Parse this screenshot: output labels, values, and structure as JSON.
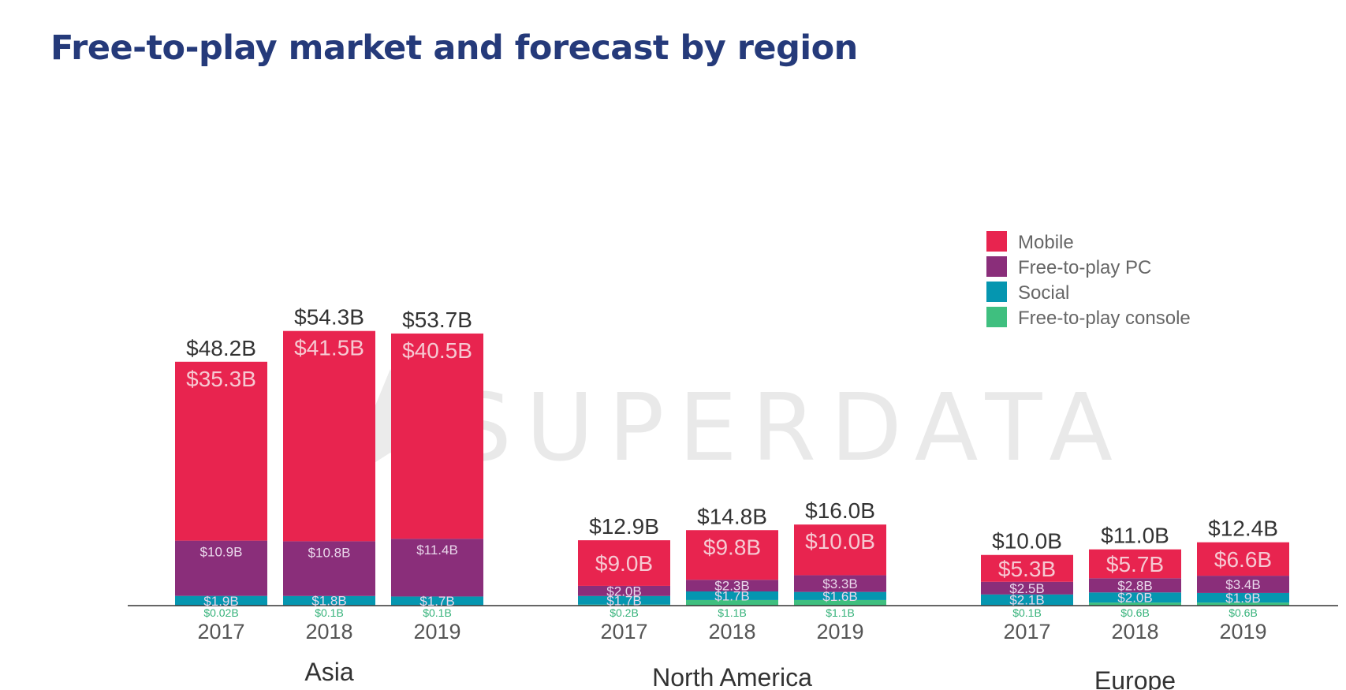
{
  "title": "Free-to-play market and forecast by region",
  "watermark": "SUPERDATA",
  "colors": {
    "Mobile": "#e8244f",
    "Free-to-play PC": "#8a2e7a",
    "Social": "#0596b0",
    "Free-to-play console": "#3fbf7f"
  },
  "chart_data": {
    "type": "bar",
    "stacked": true,
    "ylim": [
      0,
      60
    ],
    "legend": [
      "Mobile",
      "Free-to-play PC",
      "Social",
      "Free-to-play console"
    ],
    "legend_position": "right",
    "groups": [
      {
        "region": "Asia",
        "bars": [
          {
            "year": "2017",
            "total": "$48.2B",
            "Mobile": 35.3,
            "Free-to-play PC": 10.9,
            "Social": 1.9,
            "Free-to-play console": 0.02,
            "labels": {
              "Mobile": "$35.3B",
              "Free-to-play PC": "$10.9B",
              "Social": "$1.9B",
              "Free-to-play console": "$0.02B"
            }
          },
          {
            "year": "2018",
            "total": "$54.3B",
            "Mobile": 41.5,
            "Free-to-play PC": 10.8,
            "Social": 1.8,
            "Free-to-play console": 0.1,
            "labels": {
              "Mobile": "$41.5B",
              "Free-to-play PC": "$10.8B",
              "Social": "$1.8B",
              "Free-to-play console": "$0.1B"
            }
          },
          {
            "year": "2019",
            "total": "$53.7B",
            "Mobile": 40.5,
            "Free-to-play PC": 11.4,
            "Social": 1.7,
            "Free-to-play console": 0.1,
            "labels": {
              "Mobile": "$40.5B",
              "Free-to-play PC": "$11.4B",
              "Social": "$1.7B",
              "Free-to-play console": "$0.1B"
            }
          }
        ]
      },
      {
        "region": "North America",
        "bars": [
          {
            "year": "2017",
            "total": "$12.9B",
            "Mobile": 9.0,
            "Free-to-play PC": 2.0,
            "Social": 1.7,
            "Free-to-play console": 0.2,
            "labels": {
              "Mobile": "$9.0B",
              "Free-to-play PC": "$2.0B",
              "Social": "$1.7B",
              "Free-to-play console": "$0.2B"
            }
          },
          {
            "year": "2018",
            "total": "$14.8B",
            "Mobile": 9.8,
            "Free-to-play PC": 2.3,
            "Social": 1.7,
            "Free-to-play console": 1.1,
            "labels": {
              "Mobile": "$9.8B",
              "Free-to-play PC": "$2.3B",
              "Social": "$1.7B",
              "Free-to-play console": "$1.1B"
            }
          },
          {
            "year": "2019",
            "total": "$16.0B",
            "Mobile": 10.0,
            "Free-to-play PC": 3.3,
            "Social": 1.6,
            "Free-to-play console": 1.1,
            "labels": {
              "Mobile": "$10.0B",
              "Free-to-play PC": "$3.3B",
              "Social": "$1.6B",
              "Free-to-play console": "$1.1B"
            }
          }
        ]
      },
      {
        "region": "Europe",
        "bars": [
          {
            "year": "2017",
            "total": "$10.0B",
            "Mobile": 5.3,
            "Free-to-play PC": 2.5,
            "Social": 2.1,
            "Free-to-play console": 0.1,
            "labels": {
              "Mobile": "$5.3B",
              "Free-to-play PC": "$2.5B",
              "Social": "$2.1B",
              "Free-to-play console": "$0.1B"
            }
          },
          {
            "year": "2018",
            "total": "$11.0B",
            "Mobile": 5.7,
            "Free-to-play PC": 2.8,
            "Social": 2.0,
            "Free-to-play console": 0.6,
            "labels": {
              "Mobile": "$5.7B",
              "Free-to-play PC": "$2.8B",
              "Social": "$2.0B",
              "Free-to-play console": "$0.6B"
            }
          },
          {
            "year": "2019",
            "total": "$12.4B",
            "Mobile": 6.6,
            "Free-to-play PC": 3.4,
            "Social": 1.9,
            "Free-to-play console": 0.6,
            "labels": {
              "Mobile": "$6.6B",
              "Free-to-play PC": "$3.4B",
              "Social": "$1.9B",
              "Free-to-play console": "$0.6B"
            }
          }
        ]
      }
    ]
  }
}
